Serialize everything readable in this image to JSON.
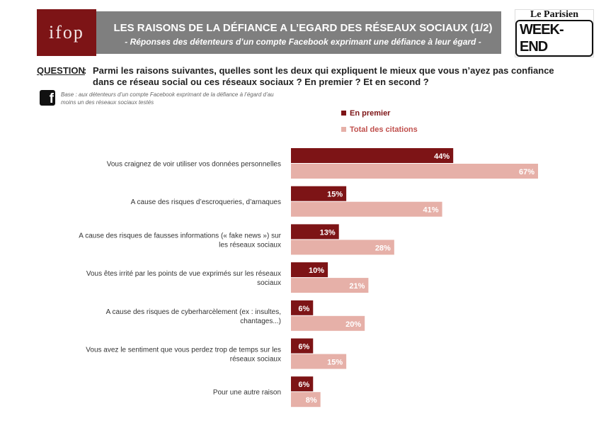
{
  "header": {
    "title": "LES RAISONS DE LA DÉFIANCE A L’EGARD DES RÉSEAUX SOCIAUX (1/2)",
    "subtitle": "- Réponses des détenteurs d’un compte Facebook exprimant une défiance à leur égard -",
    "ifop_logo": "ifop",
    "parisien_top": "Le Parisien",
    "parisien_bottom": "WEEK-END"
  },
  "question": {
    "label": "QUESTION",
    "colon": ":",
    "text": "Parmi les raisons suivantes, quelles sont les deux qui expliquent le mieux que vous n’ayez pas confiance dans ce réseau social ou ces réseaux sociaux ? En premier ? Et en second ?"
  },
  "base": {
    "icon": "facebook-icon",
    "text": "Base : aux détenteurs d’un compte Facebook exprimant de la défiance à l’égard d’au moins un des réseaux sociaux testés"
  },
  "colors": {
    "first": "#7d1416",
    "total": "#e6b0a8",
    "legend_total_text": "#c0504d"
  },
  "chart_data": {
    "type": "bar",
    "orientation": "horizontal",
    "categories": [
      [
        "Vous craignez de voir utiliser vos données personnelles"
      ],
      [
        "A cause des risques d’escroqueries, d’arnaques"
      ],
      [
        "A cause des risques de fausses informations (« fake news ») sur",
        "les réseaux sociaux"
      ],
      [
        "Vous êtes irrité par les points de vue exprimés sur les réseaux",
        "sociaux"
      ],
      [
        "A cause des risques de cyberharcèlement (ex : insultes,",
        "chantages...)"
      ],
      [
        "Vous avez le sentiment que vous perdez trop de temps sur les",
        "réseaux sociaux"
      ],
      [
        "Pour une autre raison"
      ]
    ],
    "series": [
      {
        "name": "En premier",
        "values": [
          44,
          15,
          13,
          10,
          6,
          6,
          6
        ],
        "labels": [
          "44%",
          "15%",
          "13%",
          "10%",
          "6%",
          "6%",
          "6%"
        ]
      },
      {
        "name": "Total des citations",
        "values": [
          67,
          41,
          28,
          21,
          20,
          15,
          8
        ],
        "labels": [
          "67%",
          "41%",
          "28%",
          "21%",
          "20%",
          "15%",
          "8%"
        ]
      }
    ],
    "unit": "%",
    "xlim": [
      0,
      100
    ],
    "legend_position": "top",
    "grid": false
  }
}
